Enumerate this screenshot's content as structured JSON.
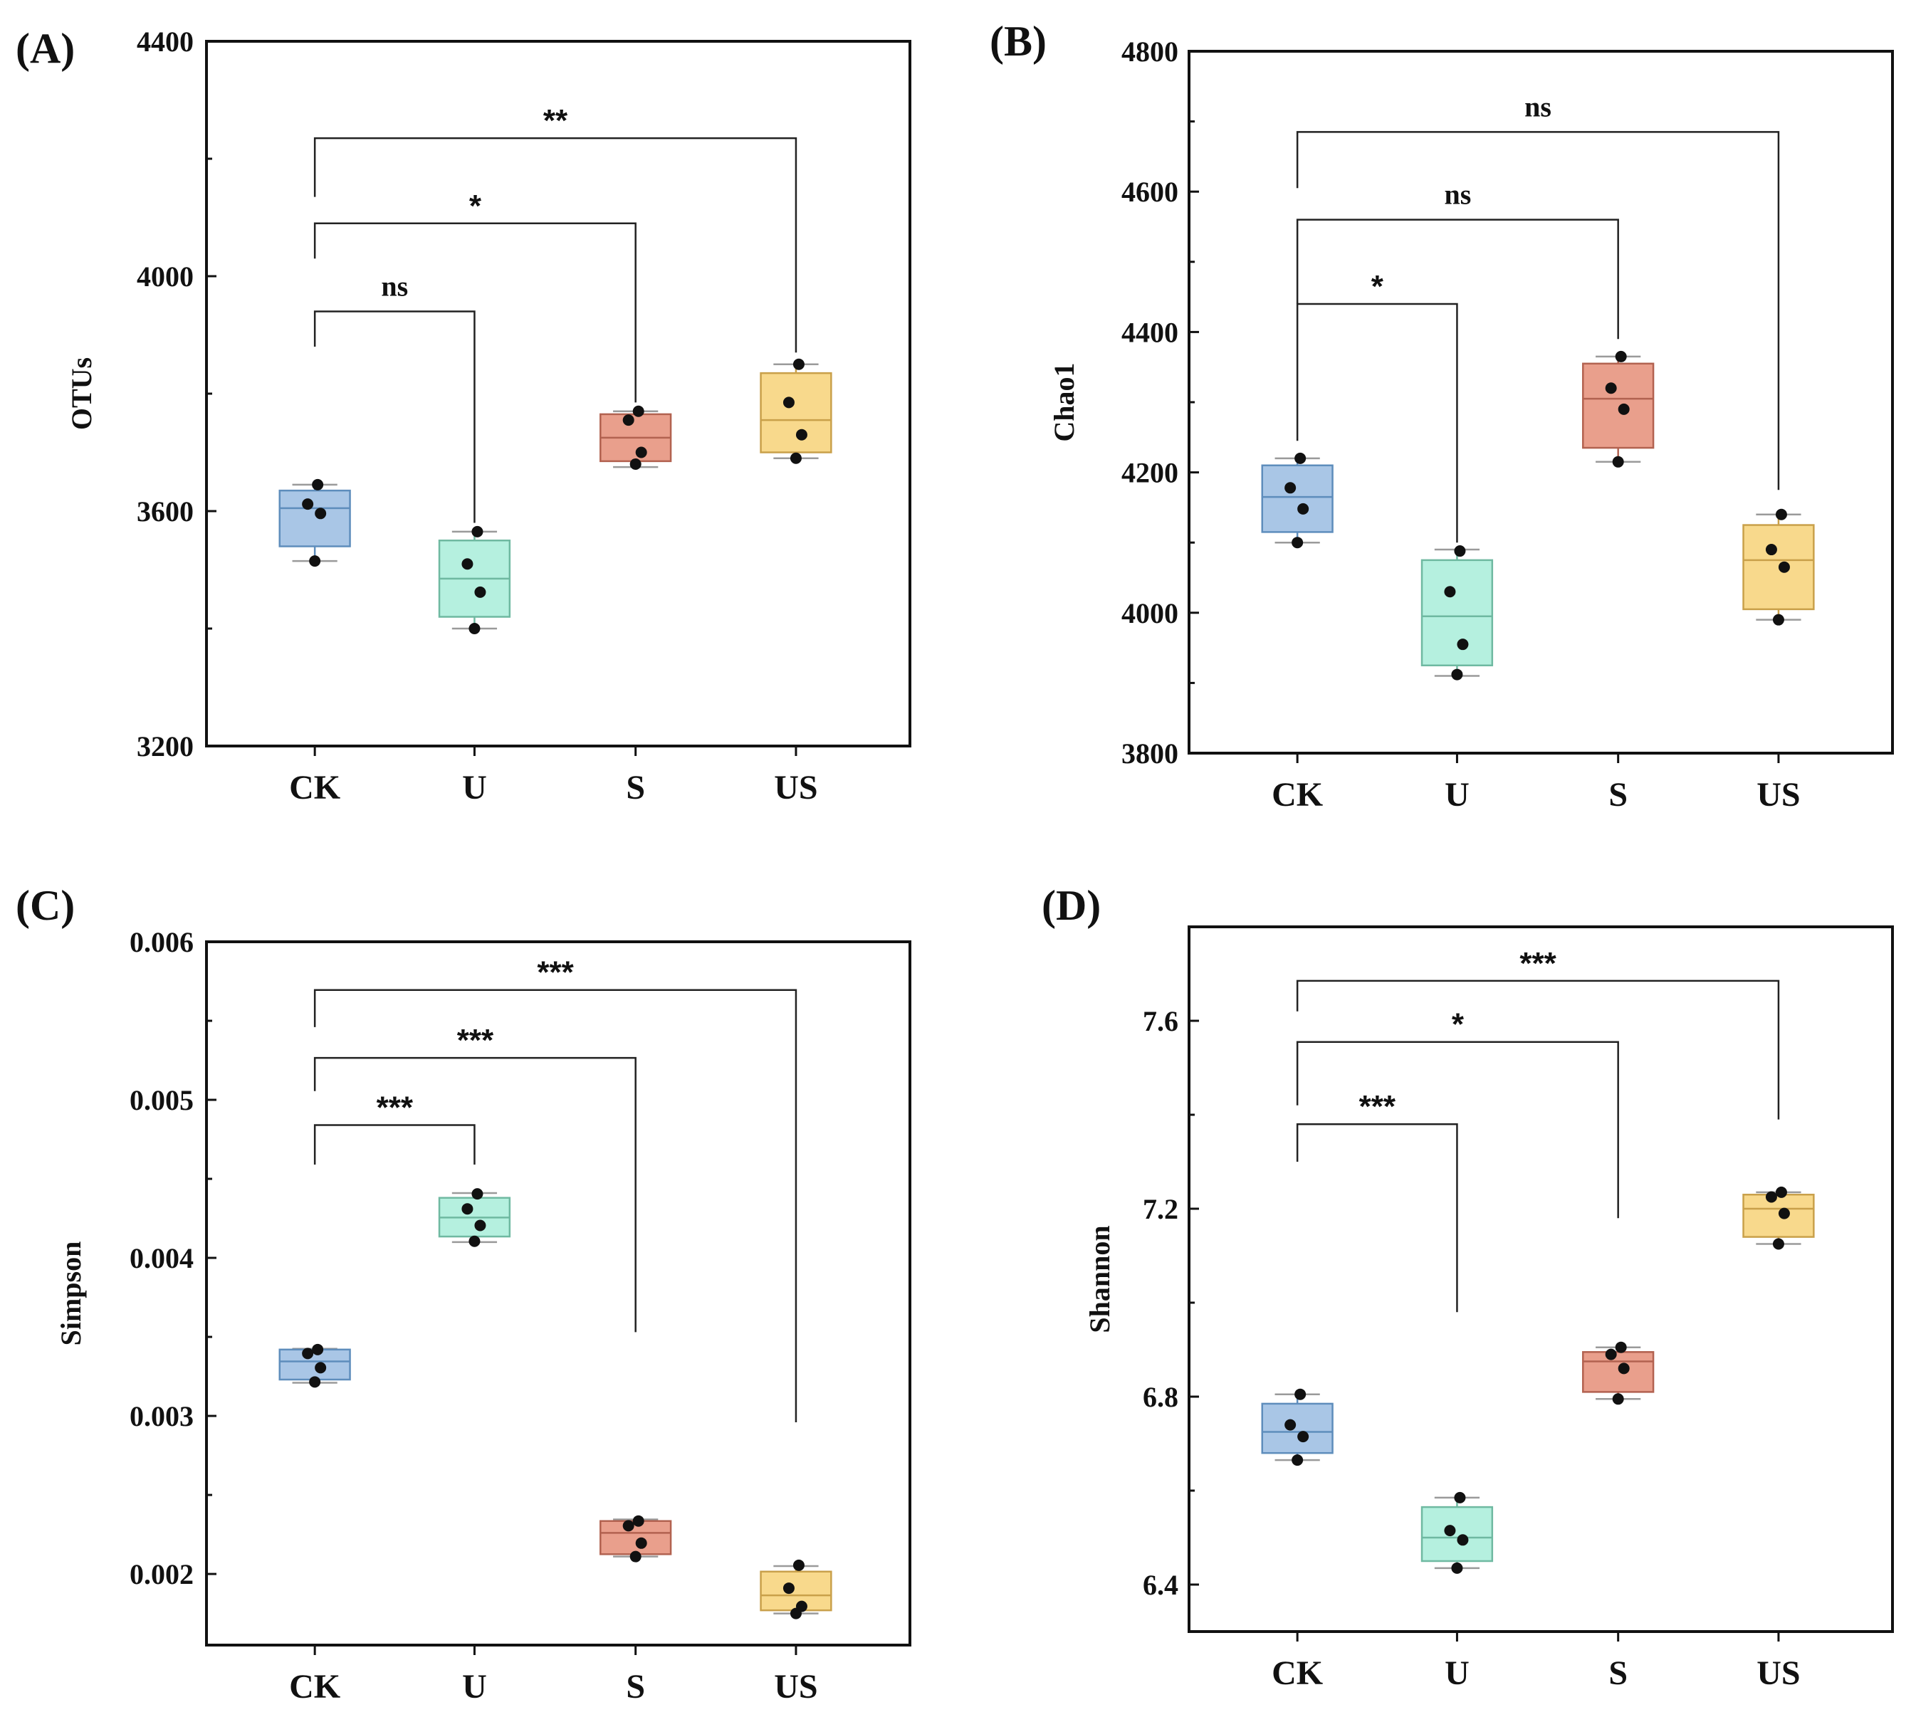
{
  "colors": {
    "CK": {
      "fill": "#a9c6e6",
      "stroke": "#5e8dbc"
    },
    "U": {
      "fill": "#b5f0df",
      "stroke": "#6fb9a1"
    },
    "S": {
      "fill": "#e99f8c",
      "stroke": "#b26250"
    },
    "US": {
      "fill": "#f8d98c",
      "stroke": "#c9a04a"
    }
  },
  "chart_data": [
    {
      "type": "box",
      "panel_label": "(A)",
      "ylabel": "OTUs",
      "ylim": [
        3200,
        4400
      ],
      "yticks": [
        3200,
        3600,
        4000,
        4400
      ],
      "ytick_labels": [
        "3200",
        "3600",
        "4000",
        "4400"
      ],
      "categories": [
        "CK",
        "U",
        "S",
        "US"
      ],
      "groups": [
        {
          "name": "CK",
          "q1": 3540,
          "median": 3605,
          "q3": 3635,
          "whisker_low": 3515,
          "whisker_high": 3645,
          "points": [
            3645,
            3612,
            3596,
            3515
          ]
        },
        {
          "name": "U",
          "q1": 3420,
          "median": 3485,
          "q3": 3550,
          "whisker_low": 3400,
          "whisker_high": 3565,
          "points": [
            3565,
            3510,
            3462,
            3400
          ]
        },
        {
          "name": "S",
          "q1": 3685,
          "median": 3725,
          "q3": 3765,
          "whisker_low": 3675,
          "whisker_high": 3770,
          "points": [
            3770,
            3755,
            3700,
            3680
          ]
        },
        {
          "name": "US",
          "q1": 3700,
          "median": 3755,
          "q3": 3835,
          "whisker_low": 3690,
          "whisker_high": 3850,
          "points": [
            3850,
            3785,
            3730,
            3690
          ]
        }
      ],
      "comparisons": [
        {
          "from": "CK",
          "to": "U",
          "label": "ns",
          "bar_y": 3940,
          "left_drop": 3880,
          "right_drop": 3580
        },
        {
          "from": "CK",
          "to": "S",
          "label": "*",
          "bar_y": 4090,
          "left_drop": 4030,
          "right_drop": 3785
        },
        {
          "from": "CK",
          "to": "US",
          "label": "**",
          "bar_y": 4235,
          "left_drop": 4135,
          "right_drop": 3870
        }
      ]
    },
    {
      "type": "box",
      "panel_label": "(B)",
      "ylabel": "Chao1",
      "ylim": [
        3800,
        4800
      ],
      "yticks": [
        3800,
        4000,
        4200,
        4400,
        4600,
        4800
      ],
      "ytick_labels": [
        "3800",
        "4000",
        "4200",
        "4400",
        "4600",
        "4800"
      ],
      "categories": [
        "CK",
        "U",
        "S",
        "US"
      ],
      "groups": [
        {
          "name": "CK",
          "q1": 4115,
          "median": 4165,
          "q3": 4210,
          "whisker_low": 4100,
          "whisker_high": 4220,
          "points": [
            4220,
            4178,
            4148,
            4100
          ]
        },
        {
          "name": "U",
          "q1": 3925,
          "median": 3995,
          "q3": 4075,
          "whisker_low": 3910,
          "whisker_high": 4090,
          "points": [
            4088,
            4030,
            3955,
            3912
          ]
        },
        {
          "name": "S",
          "q1": 4235,
          "median": 4305,
          "q3": 4355,
          "whisker_low": 4215,
          "whisker_high": 4365,
          "points": [
            4365,
            4320,
            4290,
            4215
          ]
        },
        {
          "name": "US",
          "q1": 4005,
          "median": 4075,
          "q3": 4125,
          "whisker_low": 3990,
          "whisker_high": 4140,
          "points": [
            4140,
            4090,
            4065,
            3990
          ]
        }
      ],
      "comparisons": [
        {
          "from": "CK",
          "to": "U",
          "label": "*",
          "bar_y": 4440,
          "left_drop": 4245,
          "right_drop": 4100
        },
        {
          "from": "CK",
          "to": "S",
          "label": "ns",
          "bar_y": 4560,
          "left_drop": 4440,
          "right_drop": 4390
        },
        {
          "from": "CK",
          "to": "US",
          "label": "ns",
          "bar_y": 4685,
          "left_drop": 4605,
          "right_drop": 4175
        }
      ]
    },
    {
      "type": "box",
      "panel_label": "(C)",
      "ylabel": "Simpson",
      "ylim": [
        0.00155,
        0.006
      ],
      "yticks": [
        0.002,
        0.003,
        0.004,
        0.005,
        0.006
      ],
      "ytick_labels": [
        "0.002",
        "0.003",
        "0.004",
        "0.005",
        "0.006"
      ],
      "categories": [
        "CK",
        "U",
        "S",
        "US"
      ],
      "groups": [
        {
          "name": "CK",
          "q1": 0.00323,
          "median": 0.003345,
          "q3": 0.00342,
          "whisker_low": 0.00321,
          "whisker_high": 0.003425,
          "points": [
            0.00342,
            0.003395,
            0.003305,
            0.003215
          ]
        },
        {
          "name": "U",
          "q1": 0.004135,
          "median": 0.004255,
          "q3": 0.00438,
          "whisker_low": 0.0041,
          "whisker_high": 0.00441,
          "points": [
            0.004405,
            0.00431,
            0.004205,
            0.004105
          ]
        },
        {
          "name": "S",
          "q1": 0.002125,
          "median": 0.00226,
          "q3": 0.002335,
          "whisker_low": 0.00211,
          "whisker_high": 0.002345,
          "points": [
            0.002335,
            0.002305,
            0.002195,
            0.00211
          ]
        },
        {
          "name": "US",
          "q1": 0.00177,
          "median": 0.001865,
          "q3": 0.002015,
          "whisker_low": 0.00175,
          "whisker_high": 0.00205,
          "points": [
            0.002055,
            0.00191,
            0.001795,
            0.00175
          ]
        }
      ],
      "comparisons": [
        {
          "from": "CK",
          "to": "U",
          "label": "***",
          "bar_y": 0.00484,
          "left_drop": 0.00459,
          "right_drop": 0.00459
        },
        {
          "from": "CK",
          "to": "S",
          "label": "***",
          "bar_y": 0.005265,
          "left_drop": 0.005055,
          "right_drop": 0.00353
        },
        {
          "from": "CK",
          "to": "US",
          "label": "***",
          "bar_y": 0.005695,
          "left_drop": 0.00546,
          "right_drop": 0.00296
        }
      ]
    },
    {
      "type": "box",
      "panel_label": "(D)",
      "ylabel": "Shannon",
      "ylim": [
        6.3,
        7.8
      ],
      "yticks": [
        6.4,
        6.8,
        7.2,
        7.6
      ],
      "ytick_labels": [
        "6.4",
        "6.8",
        "7.2",
        "7.6"
      ],
      "categories": [
        "CK",
        "U",
        "S",
        "US"
      ],
      "groups": [
        {
          "name": "CK",
          "q1": 6.68,
          "median": 6.725,
          "q3": 6.785,
          "whisker_low": 6.665,
          "whisker_high": 6.805,
          "points": [
            6.805,
            6.74,
            6.715,
            6.665
          ]
        },
        {
          "name": "U",
          "q1": 6.45,
          "median": 6.5,
          "q3": 6.565,
          "whisker_low": 6.435,
          "whisker_high": 6.585,
          "points": [
            6.585,
            6.515,
            6.495,
            6.435
          ]
        },
        {
          "name": "S",
          "q1": 6.81,
          "median": 6.875,
          "q3": 6.895,
          "whisker_low": 6.795,
          "whisker_high": 6.905,
          "points": [
            6.905,
            6.89,
            6.86,
            6.795
          ]
        },
        {
          "name": "US",
          "q1": 7.14,
          "median": 7.2,
          "q3": 7.23,
          "whisker_low": 7.125,
          "whisker_high": 7.235,
          "points": [
            7.235,
            7.225,
            7.19,
            7.125
          ]
        }
      ],
      "comparisons": [
        {
          "from": "CK",
          "to": "U",
          "label": "***",
          "bar_y": 7.38,
          "left_drop": 7.3,
          "right_drop": 6.98
        },
        {
          "from": "CK",
          "to": "S",
          "label": "*",
          "bar_y": 7.555,
          "left_drop": 7.42,
          "right_drop": 7.18
        },
        {
          "from": "CK",
          "to": "US",
          "label": "***",
          "bar_y": 7.685,
          "left_drop": 7.62,
          "right_drop": 7.39
        }
      ]
    }
  ]
}
